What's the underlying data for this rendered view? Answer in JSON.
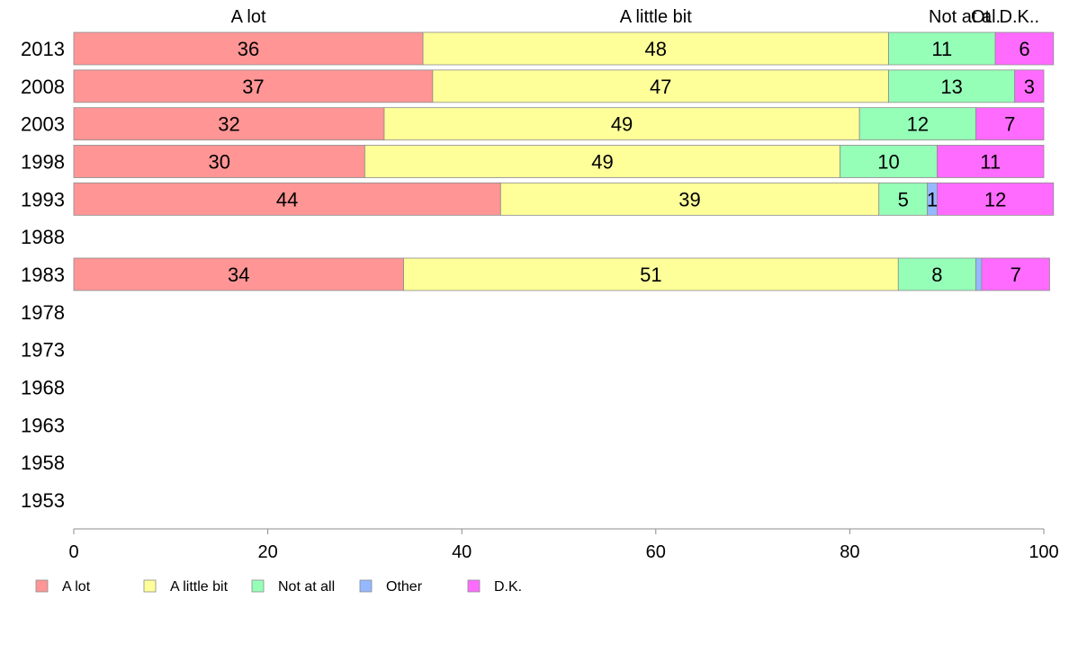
{
  "chart_data": {
    "type": "bar",
    "orientation": "horizontal",
    "stacked": true,
    "categories": [
      "2013",
      "2008",
      "2003",
      "1998",
      "1993",
      "1988",
      "1983",
      "1978",
      "1973",
      "1968",
      "1963",
      "1958",
      "1953"
    ],
    "series": [
      {
        "name": "A lot",
        "color": "#ff9595",
        "values": [
          36,
          37,
          32,
          30,
          44,
          null,
          34,
          null,
          null,
          null,
          null,
          null,
          null
        ]
      },
      {
        "name": "A little bit",
        "color": "#ffff9a",
        "values": [
          48,
          47,
          49,
          49,
          39,
          null,
          51,
          null,
          null,
          null,
          null,
          null,
          null
        ]
      },
      {
        "name": "Not at all",
        "color": "#95ffb8",
        "values": [
          11,
          13,
          12,
          10,
          5,
          null,
          8,
          null,
          null,
          null,
          null,
          null,
          null
        ]
      },
      {
        "name": "Other",
        "color": "#95b8ff",
        "values": [
          0,
          0,
          0,
          0,
          1,
          null,
          0.6,
          null,
          null,
          null,
          null,
          null,
          null
        ]
      },
      {
        "name": "D.K.",
        "color": "#ff6bff",
        "values": [
          6,
          3,
          7,
          11,
          12,
          null,
          7,
          null,
          null,
          null,
          null,
          null,
          null
        ]
      }
    ],
    "bar_labels": [
      [
        "36",
        "48",
        "11",
        "",
        "6"
      ],
      [
        "37",
        "47",
        "13",
        "",
        "3"
      ],
      [
        "32",
        "49",
        "12",
        "",
        "7"
      ],
      [
        "30",
        "49",
        "10",
        "",
        "11"
      ],
      [
        "44",
        "39",
        "5",
        "1",
        "12"
      ],
      [
        "",
        "",
        "",
        "",
        ""
      ],
      [
        "34",
        "51",
        "8",
        "",
        "7"
      ],
      [
        "",
        "",
        "",
        "",
        ""
      ],
      [
        "",
        "",
        "",
        "",
        ""
      ],
      [
        "",
        "",
        "",
        "",
        ""
      ],
      [
        "",
        "",
        "",
        "",
        ""
      ],
      [
        "",
        "",
        "",
        "",
        ""
      ],
      [
        "",
        "",
        "",
        "",
        ""
      ]
    ],
    "top_labels": [
      "A lot",
      "A little bit",
      "Not at al.",
      "Ot",
      "D.K.."
    ],
    "xlim": [
      0,
      100
    ],
    "xticks": [
      "0",
      "20",
      "40",
      "60",
      "80",
      "100"
    ],
    "legend": [
      "A lot",
      "A little bit",
      "Not at all",
      "Other",
      "D.K."
    ],
    "legend_position": "bottom-left",
    "grid": false
  }
}
